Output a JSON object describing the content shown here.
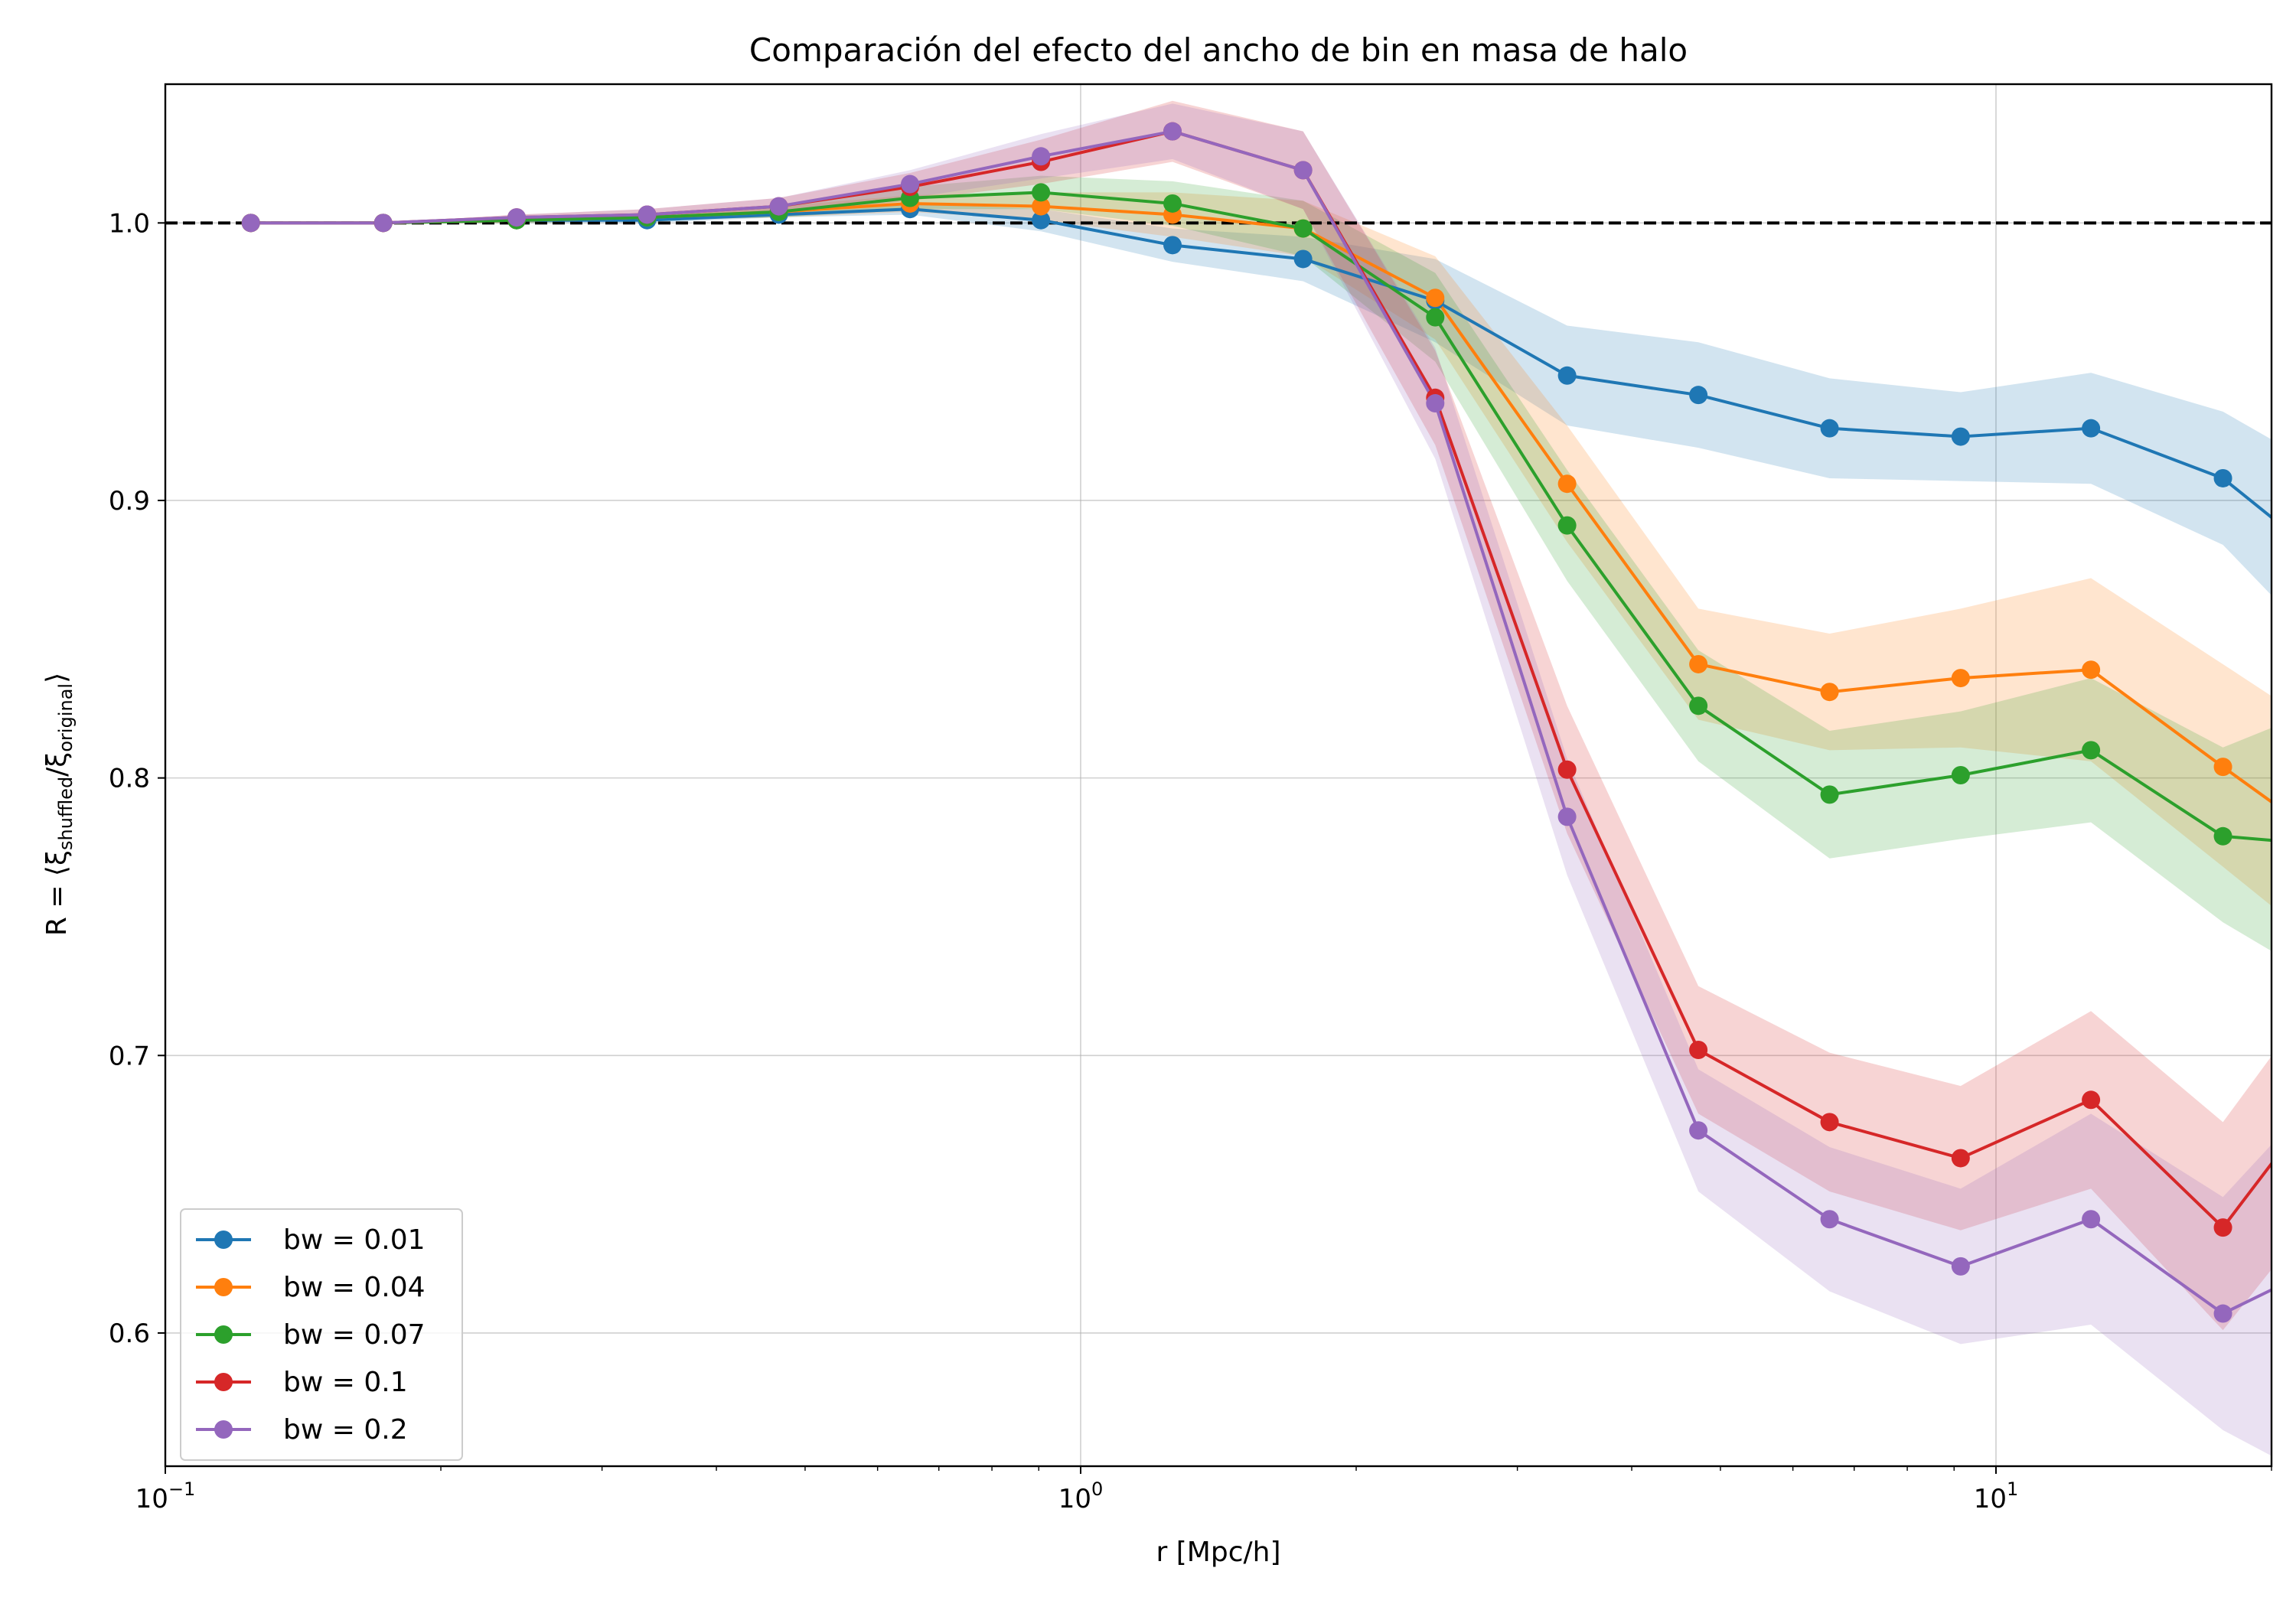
{
  "chart_data": {
    "type": "line",
    "title": "Comparación del efecto del ancho de bin en masa de halo",
    "xlabel": "r [Mpc/h]",
    "ylabel": "R = ⟨ξshuffled/ξoriginal⟩",
    "ylabel_parts": {
      "prefix": "R = ⟨ξ",
      "sub1": "shuffled",
      "mid": "/ξ",
      "sub2": "original",
      "suffix": "⟩"
    },
    "xscale": "log",
    "xlim": [
      0.1,
      20
    ],
    "ylim": [
      0.552,
      1.05
    ],
    "xticks": [
      {
        "value": 0.1,
        "base": "10",
        "exp": "−1"
      },
      {
        "value": 1,
        "base": "10",
        "exp": "0"
      },
      {
        "value": 10,
        "base": "10",
        "exp": "1"
      }
    ],
    "yticks": [
      {
        "value": 0.6,
        "label": "0.6"
      },
      {
        "value": 0.7,
        "label": "0.7"
      },
      {
        "value": 0.8,
        "label": "0.8"
      },
      {
        "value": 0.9,
        "label": "0.9"
      },
      {
        "value": 1.0,
        "label": "1.0"
      }
    ],
    "grid": true,
    "reference_line": {
      "y": 1.0,
      "style": "dashed",
      "color": "#000000"
    },
    "legend_position": "lower-left",
    "x": [
      0.124,
      0.173,
      0.242,
      0.336,
      0.468,
      0.651,
      0.905,
      1.26,
      1.75,
      2.44,
      3.4,
      4.73,
      6.58,
      9.15,
      12.7,
      17.7,
      24.6
    ],
    "series": [
      {
        "name": "bw = 0.01",
        "color": "#1f77b4",
        "values": [
          1.0,
          1.0,
          1.001,
          1.001,
          1.003,
          1.005,
          1.001,
          0.992,
          0.987,
          0.972,
          0.945,
          0.938,
          0.926,
          0.923,
          0.926,
          0.908,
          0.87
        ],
        "lower": [
          1.0,
          1.0,
          1.0,
          1.0,
          1.002,
          1.003,
          0.997,
          0.986,
          0.979,
          0.957,
          0.927,
          0.919,
          0.908,
          0.907,
          0.906,
          0.884,
          0.835
        ],
        "upper": [
          1.0,
          1.0,
          1.002,
          1.002,
          1.004,
          1.007,
          1.005,
          0.998,
          0.995,
          0.987,
          0.963,
          0.957,
          0.944,
          0.939,
          0.946,
          0.932,
          0.905
        ]
      },
      {
        "name": "bw = 0.04",
        "color": "#ff7f0e",
        "values": [
          1.0,
          1.0,
          1.001,
          1.002,
          1.004,
          1.007,
          1.006,
          1.003,
          0.998,
          0.973,
          0.906,
          0.841,
          0.831,
          0.836,
          0.839,
          0.804,
          0.77
        ],
        "lower": [
          1.0,
          1.0,
          1.0,
          1.001,
          1.002,
          1.004,
          1.001,
          0.995,
          0.988,
          0.958,
          0.885,
          0.821,
          0.81,
          0.811,
          0.806,
          0.768,
          0.73
        ],
        "upper": [
          1.0,
          1.0,
          1.002,
          1.003,
          1.006,
          1.01,
          1.011,
          1.011,
          1.008,
          0.988,
          0.927,
          0.861,
          0.852,
          0.861,
          0.872,
          0.841,
          0.81
        ]
      },
      {
        "name": "bw = 0.07",
        "color": "#2ca02c",
        "values": [
          1.0,
          1.0,
          1.001,
          1.002,
          1.004,
          1.009,
          1.011,
          1.007,
          0.998,
          0.966,
          0.891,
          0.826,
          0.794,
          0.801,
          0.81,
          0.779,
          0.775
        ],
        "lower": [
          1.0,
          1.0,
          1.0,
          1.001,
          1.002,
          1.005,
          1.005,
          0.999,
          0.988,
          0.95,
          0.871,
          0.806,
          0.771,
          0.778,
          0.784,
          0.748,
          0.72
        ],
        "upper": [
          1.0,
          1.0,
          1.002,
          1.003,
          1.006,
          1.013,
          1.017,
          1.015,
          1.008,
          0.982,
          0.911,
          0.846,
          0.817,
          0.824,
          0.836,
          0.811,
          0.83
        ]
      },
      {
        "name": "bw = 0.1",
        "color": "#d62728",
        "values": [
          1.0,
          1.0,
          1.002,
          1.003,
          1.006,
          1.013,
          1.022,
          1.033,
          1.019,
          0.937,
          0.803,
          0.702,
          0.676,
          0.663,
          0.684,
          0.638,
          0.7
        ],
        "lower": [
          1.0,
          1.0,
          1.001,
          1.001,
          1.003,
          1.008,
          1.014,
          1.022,
          1.005,
          0.92,
          0.78,
          0.679,
          0.651,
          0.637,
          0.652,
          0.601,
          0.66
        ],
        "upper": [
          1.0,
          1.0,
          1.003,
          1.005,
          1.009,
          1.018,
          1.03,
          1.044,
          1.033,
          0.954,
          0.826,
          0.725,
          0.701,
          0.689,
          0.716,
          0.676,
          0.74
        ]
      },
      {
        "name": "bw = 0.2",
        "color": "#9467bd",
        "values": [
          1.0,
          1.0,
          1.002,
          1.003,
          1.006,
          1.014,
          1.024,
          1.033,
          1.019,
          0.935,
          0.786,
          0.673,
          0.641,
          0.624,
          0.641,
          0.607,
          0.63
        ],
        "lower": [
          1.0,
          1.0,
          1.001,
          1.001,
          1.003,
          1.009,
          1.016,
          1.023,
          1.005,
          0.915,
          0.765,
          0.651,
          0.615,
          0.596,
          0.603,
          0.565,
          0.54
        ],
        "upper": [
          1.0,
          1.0,
          1.003,
          1.005,
          1.009,
          1.019,
          1.032,
          1.043,
          1.033,
          0.955,
          0.807,
          0.695,
          0.667,
          0.652,
          0.679,
          0.649,
          0.7
        ]
      }
    ]
  }
}
